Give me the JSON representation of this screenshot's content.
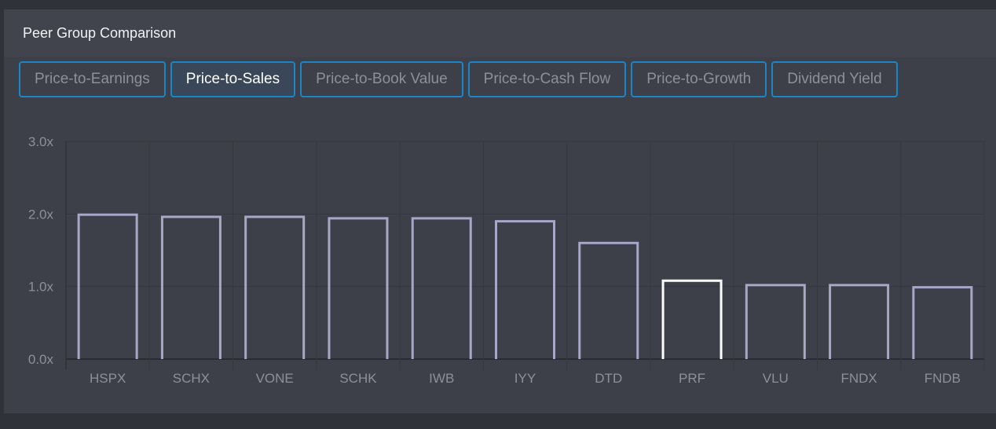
{
  "header": {
    "title": "Peer Group Comparison"
  },
  "tabs": [
    {
      "label": "Price-to-Earnings",
      "active": false
    },
    {
      "label": "Price-to-Sales",
      "active": true
    },
    {
      "label": "Price-to-Book Value",
      "active": false
    },
    {
      "label": "Price-to-Cash Flow",
      "active": false
    },
    {
      "label": "Price-to-Growth",
      "active": false
    },
    {
      "label": "Dividend Yield",
      "active": false
    }
  ],
  "colors": {
    "bar": "#a9a6c8",
    "highlight": "#ffffff",
    "tab_border": "#1a86c8"
  },
  "chart_data": {
    "type": "bar",
    "title": "Price-to-Sales",
    "categories": [
      "HSPX",
      "SCHX",
      "VONE",
      "SCHK",
      "IWB",
      "IYY",
      "DTD",
      "PRF",
      "VLU",
      "FNDX",
      "FNDB"
    ],
    "values": [
      1.99,
      1.96,
      1.96,
      1.94,
      1.94,
      1.9,
      1.6,
      1.08,
      1.02,
      1.02,
      0.99
    ],
    "highlight": "PRF",
    "ylim": [
      0,
      3
    ],
    "yticks": [
      0,
      1,
      2,
      3
    ],
    "ytick_labels": [
      "0.0x",
      "1.0x",
      "2.0x",
      "3.0x"
    ],
    "grid": true,
    "xlabel": "",
    "ylabel": ""
  }
}
